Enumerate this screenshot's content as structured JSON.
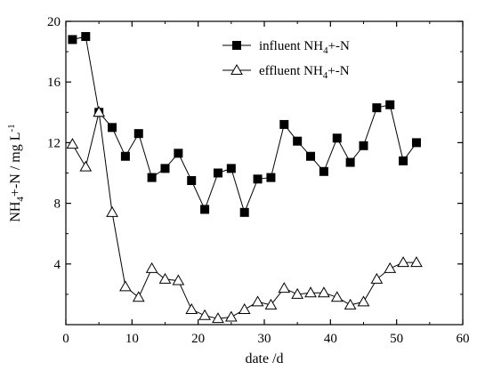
{
  "chart_data": {
    "type": "line",
    "xlabel": "date /d",
    "ylabel_parts": [
      "NH",
      "4",
      "+-N / mg L",
      "-1"
    ],
    "xlim": [
      0,
      60
    ],
    "ylim": [
      0,
      20
    ],
    "x_ticks": [
      0,
      10,
      20,
      30,
      40,
      50,
      60
    ],
    "y_ticks": [
      4,
      8,
      12,
      16,
      20
    ],
    "legend_placement": "top-right",
    "series": [
      {
        "name": "influent NH4+-N",
        "name_parts": [
          "influent  NH",
          "4",
          "+-N"
        ],
        "marker": "filled-square",
        "color": "#000000",
        "x": [
          1,
          3,
          5,
          7,
          9,
          11,
          13,
          15,
          17,
          19,
          21,
          23,
          25,
          27,
          29,
          31,
          33,
          35,
          37,
          39,
          41,
          43,
          45,
          47,
          49,
          51,
          53
        ],
        "y": [
          18.8,
          19.0,
          14.0,
          13.0,
          11.1,
          12.6,
          9.7,
          10.3,
          11.3,
          9.5,
          7.6,
          10.0,
          10.3,
          7.4,
          9.6,
          9.7,
          13.2,
          12.1,
          11.1,
          10.1,
          12.3,
          10.7,
          11.8,
          14.3,
          14.5,
          10.8,
          12.0
        ]
      },
      {
        "name": "effluent NH4+-N",
        "name_parts": [
          "effluent  NH",
          "4",
          "+-N"
        ],
        "marker": "open-triangle",
        "color": "#000000",
        "x": [
          1,
          3,
          5,
          7,
          9,
          11,
          13,
          15,
          17,
          19,
          21,
          23,
          25,
          27,
          29,
          31,
          33,
          35,
          37,
          39,
          41,
          43,
          45,
          47,
          49,
          51,
          53
        ],
        "y": [
          11.9,
          10.4,
          14.0,
          7.4,
          2.5,
          1.8,
          3.7,
          3.0,
          2.9,
          1.0,
          0.6,
          0.4,
          0.5,
          1.0,
          1.5,
          1.3,
          2.4,
          2.0,
          2.1,
          2.1,
          1.8,
          1.3,
          1.5,
          3.0,
          3.7,
          4.1,
          4.1
        ]
      }
    ]
  }
}
